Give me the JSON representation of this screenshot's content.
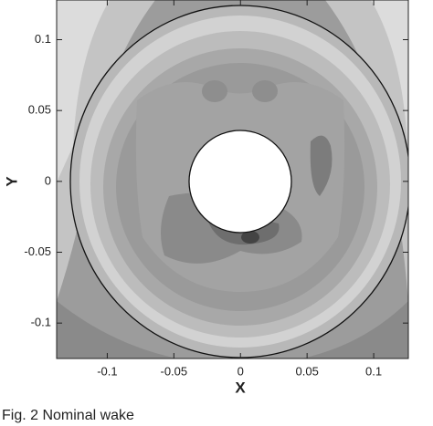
{
  "chart_data": {
    "type": "contour",
    "caption": "Fig. 2 Nominal wake",
    "xlabel": "X",
    "ylabel": "Y",
    "xlim": [
      -0.138,
      0.126
    ],
    "ylim": [
      -0.125,
      0.128
    ],
    "xticks": [
      -0.1,
      -0.05,
      0,
      0.05,
      0.1
    ],
    "yticks": [
      -0.1,
      -0.05,
      0,
      0.05,
      0.1
    ]
  }
}
